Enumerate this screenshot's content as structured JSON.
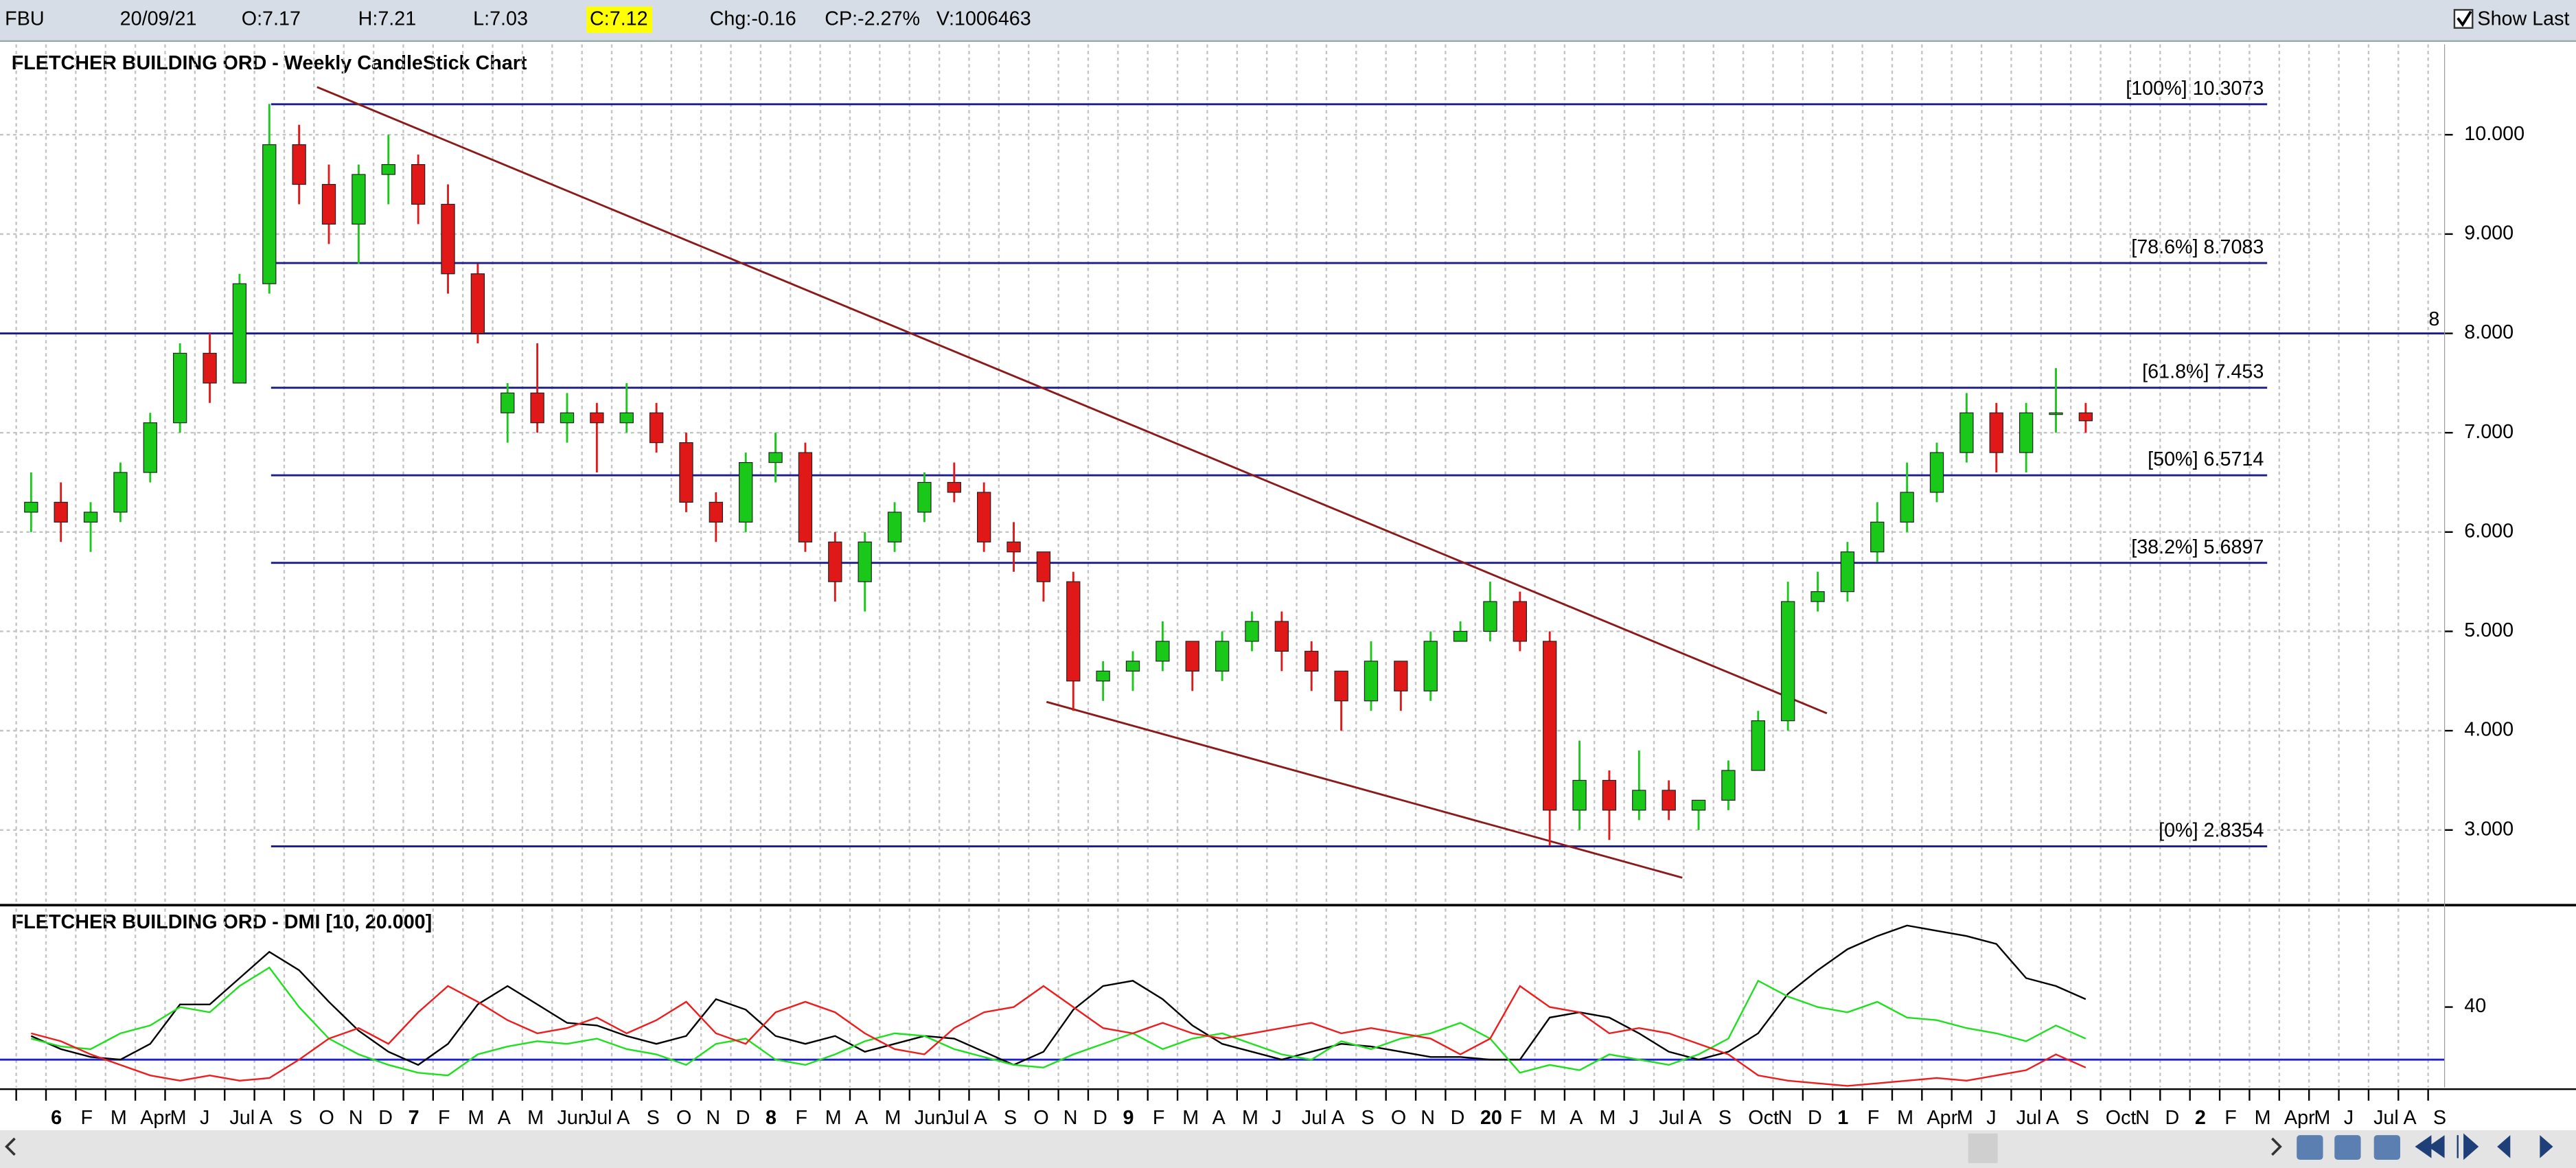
{
  "toolbar": {
    "symbol": "FBU",
    "date": "20/09/21",
    "open": "O:7.17",
    "high": "H:7.21",
    "low": "L:7.03",
    "close": "C:7.12",
    "change": "Chg:-0.16",
    "change_percent": "CP:-2.27%",
    "volume": "V:1006463",
    "show_last": "Show Last"
  },
  "chart_data": [
    {
      "type": "candlestick",
      "title": "FLETCHER BUILDING ORD - Weekly CandleStick Chart",
      "open": [
        null,
        6.2,
        6.3,
        6.1,
        6.2,
        6.6,
        7.1,
        7.8,
        7.5,
        8.5,
        9.9,
        9.5,
        9.1,
        9.6,
        9.7,
        9.3,
        8.6,
        7.2,
        7.4,
        7.1,
        7.2,
        7.1,
        7.2,
        6.9,
        6.3,
        6.1,
        6.7,
        6.8,
        5.9,
        5.5,
        5.9,
        6.2,
        6.5,
        6.4,
        5.9,
        5.8,
        5.5,
        4.5,
        4.6,
        4.7,
        4.9,
        4.6,
        4.9,
        5.1,
        4.8,
        4.6,
        4.3,
        4.7,
        4.4,
        4.9,
        5.0,
        5.3,
        4.9,
        3.2,
        3.5,
        3.2,
        3.4,
        3.2,
        3.3,
        3.6,
        4.1,
        5.3,
        5.4,
        5.8,
        6.1,
        6.4,
        6.8,
        7.2,
        6.8,
        7.2,
        7.2,
        null,
        null,
        null,
        null,
        null,
        null,
        null,
        null,
        null,
        null,
        null,
        null
      ],
      "high": [
        null,
        6.6,
        6.5,
        6.3,
        6.7,
        7.2,
        7.9,
        8.0,
        8.6,
        10.31,
        10.1,
        9.7,
        9.7,
        10.0,
        9.8,
        9.5,
        8.7,
        7.5,
        7.9,
        7.4,
        7.3,
        7.5,
        7.3,
        7.0,
        6.4,
        6.8,
        7.0,
        6.9,
        6.0,
        6.0,
        6.3,
        6.6,
        6.7,
        6.5,
        6.1,
        5.8,
        5.6,
        4.7,
        4.8,
        5.1,
        4.9,
        5.0,
        5.2,
        5.2,
        4.9,
        4.6,
        4.9,
        4.7,
        5.0,
        5.1,
        5.5,
        5.4,
        5.0,
        3.9,
        3.6,
        3.8,
        3.5,
        3.3,
        3.7,
        4.2,
        5.5,
        5.6,
        5.9,
        6.3,
        6.7,
        6.9,
        7.4,
        7.3,
        7.3,
        7.65,
        7.3,
        null,
        null,
        null,
        null,
        null,
        null,
        null,
        null,
        null,
        null,
        null,
        null
      ],
      "low": [
        null,
        6.0,
        5.9,
        5.8,
        6.1,
        6.5,
        7.0,
        7.3,
        7.5,
        8.4,
        9.3,
        8.9,
        8.7,
        9.3,
        9.1,
        8.4,
        7.9,
        6.9,
        7.0,
        6.9,
        6.6,
        7.0,
        6.8,
        6.2,
        5.9,
        6.0,
        6.5,
        5.8,
        5.3,
        5.2,
        5.8,
        6.1,
        6.3,
        5.8,
        5.6,
        5.3,
        4.2,
        4.3,
        4.4,
        4.6,
        4.4,
        4.5,
        4.8,
        4.6,
        4.4,
        4.0,
        4.2,
        4.2,
        4.3,
        4.9,
        4.9,
        4.8,
        2.84,
        3.0,
        2.9,
        3.1,
        3.1,
        3.0,
        3.2,
        3.6,
        4.0,
        5.2,
        5.3,
        5.7,
        6.0,
        6.3,
        6.7,
        6.6,
        6.6,
        7.0,
        7.0,
        null,
        null,
        null,
        null,
        null,
        null,
        null,
        null,
        null,
        null,
        null,
        null
      ],
      "close": [
        null,
        6.3,
        6.1,
        6.2,
        6.6,
        7.1,
        7.8,
        7.5,
        8.5,
        9.9,
        9.5,
        9.1,
        9.6,
        9.7,
        9.3,
        8.6,
        8.0,
        7.4,
        7.1,
        7.2,
        7.1,
        7.2,
        6.9,
        6.3,
        6.1,
        6.7,
        6.8,
        5.9,
        5.5,
        5.9,
        6.2,
        6.5,
        6.4,
        5.9,
        5.8,
        5.5,
        4.5,
        4.6,
        4.7,
        4.9,
        4.6,
        4.9,
        5.1,
        4.8,
        4.6,
        4.3,
        4.7,
        4.4,
        4.9,
        5.0,
        5.3,
        4.9,
        3.2,
        3.5,
        3.2,
        3.4,
        3.2,
        3.3,
        3.6,
        4.1,
        5.3,
        5.4,
        5.8,
        6.1,
        6.4,
        6.8,
        7.2,
        6.8,
        7.2,
        7.2,
        7.12,
        null,
        null,
        null,
        null,
        null,
        null,
        null,
        null,
        null,
        null,
        null,
        null
      ],
      "up_color": "#19c819",
      "down_color": "#e01818",
      "ylim": [
        2.26,
        10.91
      ],
      "yticks": [
        {
          "value": 3,
          "label": "3.000"
        },
        {
          "value": 4,
          "label": "4.000"
        },
        {
          "value": 5,
          "label": "5.000"
        },
        {
          "value": 6,
          "label": "6.000"
        },
        {
          "value": 7,
          "label": "7.000"
        },
        {
          "value": 8,
          "label": "8.000"
        },
        {
          "value": 9,
          "label": "9.000"
        },
        {
          "value": 10,
          "label": "10.000"
        }
      ],
      "grid": true,
      "fib_levels": [
        {
          "value": 10.3073,
          "label": "[100%] 10.3073"
        },
        {
          "value": 8.7083,
          "label": "[78.6%] 8.7083"
        },
        {
          "value": 7.453,
          "label": "[61.8%] 7.453"
        },
        {
          "value": 6.5714,
          "label": "[50%] 6.5714"
        },
        {
          "value": 5.6897,
          "label": "[38.2%] 5.6897"
        },
        {
          "value": 2.8354,
          "label": "[0%] 2.8354"
        }
      ],
      "fib_color": "#1c1c8c",
      "hlines": [
        8
      ],
      "trendlines": [
        [
          10.48,
          4.175
        ],
        [
          4.29,
          2.52
        ]
      ],
      "trend_color": "#8b1a1a"
    },
    {
      "type": "line",
      "title": "FLETCHER BUILDING ORD - DMI [10, 20.000]",
      "categories": [
        null,
        null,
        "6",
        "F",
        "M",
        "Apr",
        "M",
        "J",
        "Jul",
        "A",
        "S",
        "O",
        "N",
        "D",
        "7",
        "F",
        "M",
        "A",
        "M",
        "Jun",
        "Jul",
        "A",
        "S",
        "O",
        "N",
        "D",
        "8",
        "F",
        "M",
        "A",
        "M",
        "Jun",
        "Jul",
        "A",
        "S",
        "O",
        "N",
        "D",
        "9",
        "F",
        "M",
        "A",
        "M",
        "J",
        "Jul",
        "A",
        "S",
        "O",
        "N",
        "D",
        "20",
        "F",
        "M",
        "A",
        "M",
        "J",
        "Jul",
        "A",
        "S",
        "Oct",
        "N",
        "D",
        "1",
        "F",
        "M",
        "Apr",
        "M",
        "J",
        "Jul",
        "A",
        "S",
        "Oct",
        "N",
        "D",
        "2",
        "F",
        "M",
        "Apr",
        "M",
        "J",
        "Jul",
        "A",
        "S"
      ],
      "series": [
        {
          "color": "#000000",
          "values": [
            null,
            29,
            24,
            21,
            20,
            26,
            41,
            41,
            51,
            61,
            54,
            42,
            31,
            23,
            18,
            26,
            41,
            48,
            41,
            34,
            33,
            29,
            26,
            29,
            43,
            39,
            29,
            26,
            29,
            23,
            26,
            29,
            28,
            23,
            18,
            23,
            39,
            48,
            50,
            43,
            33,
            26,
            23,
            20,
            23,
            26,
            25,
            23,
            21,
            21,
            20,
            20,
            36,
            38,
            36,
            30,
            23,
            20,
            23,
            30,
            45,
            54,
            62,
            67,
            71,
            69,
            67,
            64,
            51,
            48,
            43,
            null,
            null,
            null,
            null,
            null,
            null,
            null,
            null,
            null,
            null,
            null,
            null
          ]
        },
        {
          "color": "#1ee01e",
          "values": [
            null,
            28,
            25,
            24,
            30,
            33,
            40,
            38,
            48,
            55,
            40,
            28,
            22,
            18,
            15,
            14,
            22,
            25,
            27,
            26,
            28,
            24,
            22,
            18,
            26,
            28,
            20,
            18,
            22,
            27,
            30,
            29,
            24,
            21,
            18,
            17,
            22,
            26,
            30,
            24,
            28,
            30,
            26,
            22,
            20,
            27,
            24,
            28,
            30,
            34,
            28,
            15,
            18,
            16,
            22,
            20,
            18,
            22,
            28,
            50,
            44,
            40,
            38,
            42,
            36,
            35,
            32,
            30,
            27,
            33,
            28,
            null,
            null,
            null,
            null,
            null,
            null,
            null,
            null,
            null,
            null,
            null,
            null
          ]
        },
        {
          "color": "#ee1c1c",
          "values": [
            null,
            30,
            27,
            22,
            18,
            14,
            12,
            14,
            12,
            13,
            20,
            28,
            32,
            26,
            38,
            48,
            42,
            35,
            30,
            32,
            36,
            30,
            35,
            42,
            30,
            26,
            38,
            42,
            38,
            30,
            24,
            22,
            32,
            38,
            40,
            48,
            40,
            32,
            30,
            34,
            30,
            28,
            30,
            32,
            34,
            30,
            32,
            30,
            28,
            22,
            28,
            48,
            40,
            38,
            30,
            32,
            30,
            26,
            22,
            14,
            12,
            11,
            10,
            11,
            12,
            13,
            12,
            14,
            16,
            22,
            17,
            null,
            null,
            null,
            null,
            null,
            null,
            null,
            null,
            null,
            null,
            null,
            null
          ]
        }
      ],
      "ylim": [
        9.4,
        77.5
      ],
      "yticks": [
        40
      ],
      "hlines": [
        20
      ],
      "hline_color": "#2020d0"
    }
  ]
}
